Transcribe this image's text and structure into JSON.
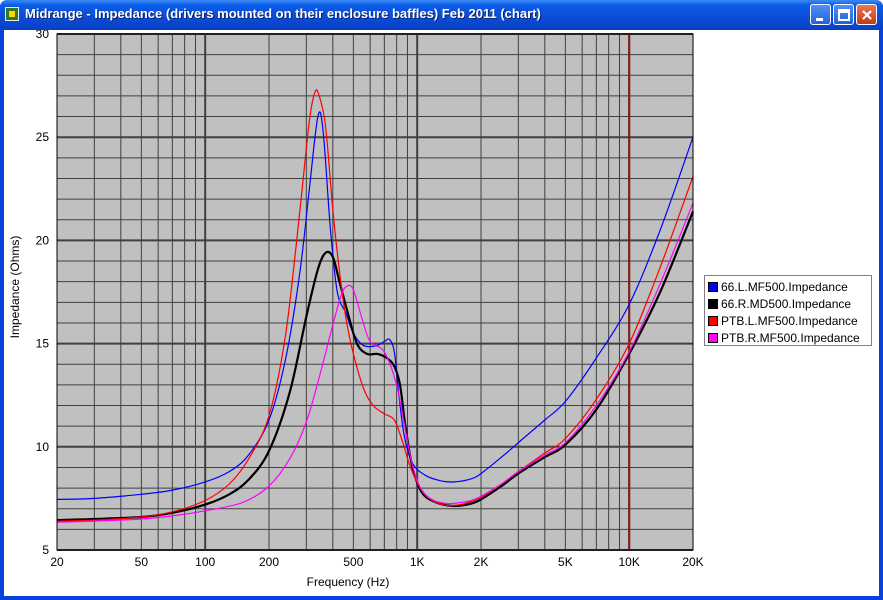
{
  "window": {
    "title": "Midrange - Impedance (drivers mounted on their enclosure baffles)  Feb 2011 (chart)"
  },
  "colors": {
    "plot_background": "#c0c0c0",
    "grid": "#404040",
    "marker_line": "#8b1a1a"
  },
  "chart_data": {
    "type": "line",
    "title": "",
    "xlabel": "Frequency (Hz)",
    "ylabel": "Impedance (Ohms)",
    "x_scale": "log",
    "xlim": [
      20,
      20000
    ],
    "ylim": [
      5,
      30
    ],
    "grid": true,
    "legend_position": "right",
    "x_tick_labels": [
      {
        "value": 20,
        "label": "20"
      },
      {
        "value": 50,
        "label": "50"
      },
      {
        "value": 100,
        "label": "100"
      },
      {
        "value": 200,
        "label": "200"
      },
      {
        "value": 500,
        "label": "500"
      },
      {
        "value": 1000,
        "label": "1K"
      },
      {
        "value": 2000,
        "label": "2K"
      },
      {
        "value": 5000,
        "label": "5K"
      },
      {
        "value": 10000,
        "label": "10K"
      },
      {
        "value": 20000,
        "label": "20K"
      }
    ],
    "y_tick_labels": [
      {
        "value": 5,
        "label": "5"
      },
      {
        "value": 10,
        "label": "10"
      },
      {
        "value": 15,
        "label": "15"
      },
      {
        "value": 20,
        "label": "20"
      },
      {
        "value": 25,
        "label": "25"
      },
      {
        "value": 30,
        "label": "30"
      }
    ],
    "vertical_marker": 10000,
    "series": [
      {
        "name": "66.L.MF500.Impedance",
        "color": "#0000ff",
        "points": [
          [
            20,
            7.45
          ],
          [
            30,
            7.5
          ],
          [
            50,
            7.7
          ],
          [
            70,
            7.9
          ],
          [
            100,
            8.3
          ],
          [
            130,
            8.8
          ],
          [
            160,
            9.6
          ],
          [
            200,
            11.3
          ],
          [
            240,
            14.3
          ],
          [
            280,
            18.5
          ],
          [
            310,
            22.5
          ],
          [
            340,
            26.0
          ],
          [
            360,
            25.3
          ],
          [
            390,
            20.5
          ],
          [
            420,
            17.5
          ],
          [
            460,
            16.5
          ],
          [
            500,
            15.5
          ],
          [
            560,
            14.9
          ],
          [
            640,
            14.9
          ],
          [
            700,
            15.1
          ],
          [
            740,
            15.2
          ],
          [
            780,
            14.6
          ],
          [
            820,
            12.5
          ],
          [
            870,
            10.5
          ],
          [
            950,
            9.2
          ],
          [
            1100,
            8.6
          ],
          [
            1300,
            8.35
          ],
          [
            1500,
            8.3
          ],
          [
            1800,
            8.45
          ],
          [
            2000,
            8.7
          ],
          [
            2500,
            9.5
          ],
          [
            3000,
            10.2
          ],
          [
            4000,
            11.3
          ],
          [
            5000,
            12.2
          ],
          [
            7000,
            14.3
          ],
          [
            10000,
            16.9
          ],
          [
            14000,
            20.5
          ],
          [
            20000,
            25.0
          ]
        ]
      },
      {
        "name": "66.R.MD500.Impedance",
        "color": "#000000",
        "points": [
          [
            20,
            6.45
          ],
          [
            30,
            6.5
          ],
          [
            50,
            6.6
          ],
          [
            70,
            6.8
          ],
          [
            100,
            7.2
          ],
          [
            130,
            7.7
          ],
          [
            160,
            8.4
          ],
          [
            200,
            9.8
          ],
          [
            250,
            12.6
          ],
          [
            300,
            16.3
          ],
          [
            340,
            18.6
          ],
          [
            370,
            19.4
          ],
          [
            400,
            19.2
          ],
          [
            430,
            18.0
          ],
          [
            470,
            16.5
          ],
          [
            520,
            15.0
          ],
          [
            580,
            14.5
          ],
          [
            650,
            14.5
          ],
          [
            720,
            14.3
          ],
          [
            780,
            13.9
          ],
          [
            830,
            13.0
          ],
          [
            880,
            11.0
          ],
          [
            950,
            9.0
          ],
          [
            1050,
            7.8
          ],
          [
            1200,
            7.35
          ],
          [
            1400,
            7.15
          ],
          [
            1600,
            7.15
          ],
          [
            1800,
            7.25
          ],
          [
            2000,
            7.45
          ],
          [
            2500,
            8.1
          ],
          [
            3000,
            8.7
          ],
          [
            4000,
            9.5
          ],
          [
            5000,
            10.1
          ],
          [
            7000,
            11.8
          ],
          [
            10000,
            14.5
          ],
          [
            14000,
            17.5
          ],
          [
            20000,
            21.4
          ]
        ]
      },
      {
        "name": "PTB.L.MF500.Impedance",
        "color": "#ff0000",
        "points": [
          [
            20,
            6.4
          ],
          [
            30,
            6.45
          ],
          [
            50,
            6.6
          ],
          [
            70,
            6.85
          ],
          [
            100,
            7.4
          ],
          [
            130,
            8.2
          ],
          [
            160,
            9.4
          ],
          [
            200,
            11.5
          ],
          [
            240,
            15.5
          ],
          [
            280,
            21.5
          ],
          [
            310,
            25.8
          ],
          [
            330,
            27.2
          ],
          [
            345,
            27.0
          ],
          [
            370,
            25.5
          ],
          [
            400,
            21.5
          ],
          [
            430,
            18.5
          ],
          [
            460,
            16.3
          ],
          [
            500,
            14.5
          ],
          [
            560,
            12.8
          ],
          [
            620,
            12.0
          ],
          [
            700,
            11.6
          ],
          [
            780,
            11.3
          ],
          [
            850,
            10.3
          ],
          [
            930,
            9.0
          ],
          [
            1050,
            7.9
          ],
          [
            1200,
            7.35
          ],
          [
            1400,
            7.15
          ],
          [
            1600,
            7.2
          ],
          [
            1800,
            7.35
          ],
          [
            2000,
            7.55
          ],
          [
            2500,
            8.2
          ],
          [
            3000,
            8.8
          ],
          [
            4000,
            9.7
          ],
          [
            5000,
            10.4
          ],
          [
            7000,
            12.3
          ],
          [
            10000,
            15.0
          ],
          [
            14000,
            18.7
          ],
          [
            20000,
            23.1
          ]
        ]
      },
      {
        "name": "PTB.R.MF500.Impedance",
        "color": "#ff00ff",
        "points": [
          [
            20,
            6.35
          ],
          [
            30,
            6.4
          ],
          [
            50,
            6.5
          ],
          [
            70,
            6.65
          ],
          [
            100,
            6.9
          ],
          [
            150,
            7.3
          ],
          [
            200,
            8.1
          ],
          [
            250,
            9.4
          ],
          [
            300,
            11.2
          ],
          [
            350,
            13.6
          ],
          [
            400,
            15.9
          ],
          [
            440,
            17.4
          ],
          [
            470,
            17.8
          ],
          [
            500,
            17.6
          ],
          [
            550,
            16.2
          ],
          [
            600,
            15.1
          ],
          [
            700,
            14.6
          ],
          [
            800,
            13.0
          ],
          [
            880,
            10.8
          ],
          [
            950,
            9.1
          ],
          [
            1050,
            7.9
          ],
          [
            1200,
            7.4
          ],
          [
            1400,
            7.25
          ],
          [
            1600,
            7.3
          ],
          [
            1800,
            7.4
          ],
          [
            2000,
            7.6
          ],
          [
            2500,
            8.2
          ],
          [
            3000,
            8.8
          ],
          [
            4000,
            9.6
          ],
          [
            5000,
            10.2
          ],
          [
            7000,
            12.0
          ],
          [
            10000,
            14.6
          ],
          [
            14000,
            17.9
          ],
          [
            20000,
            21.8
          ]
        ]
      }
    ]
  }
}
